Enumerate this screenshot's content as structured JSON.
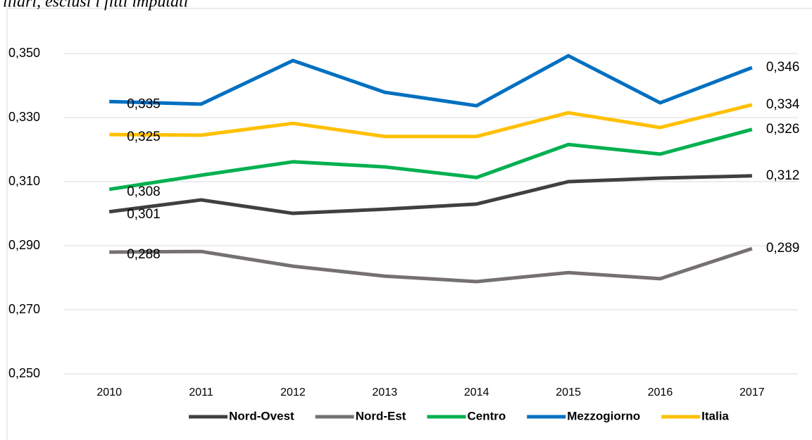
{
  "chart_data": {
    "type": "line",
    "title": "iliari, esclusi i fitti imputati",
    "categories": [
      "2010",
      "2011",
      "2012",
      "2013",
      "2014",
      "2015",
      "2016",
      "2017"
    ],
    "series": [
      {
        "name": "Nord-Ovest",
        "color": "#404040",
        "values": [
          0.3006,
          0.3043,
          0.3001,
          0.3014,
          0.303,
          0.31,
          0.3111,
          0.3118
        ],
        "value_labels": [
          "0,301",
          null,
          null,
          null,
          null,
          null,
          null,
          "0,312"
        ]
      },
      {
        "name": "Nord-Est",
        "color": "#767171",
        "values": [
          0.288,
          0.2882,
          0.2836,
          0.2805,
          0.2788,
          0.2816,
          0.2797,
          0.2891
        ],
        "value_labels": [
          "0,288",
          null,
          null,
          null,
          null,
          null,
          null,
          "0,289"
        ]
      },
      {
        "name": "Centro",
        "color": "#00b050",
        "values": [
          0.3076,
          0.312,
          0.3162,
          0.3146,
          0.3113,
          0.3216,
          0.3186,
          0.3263
        ],
        "value_labels": [
          "0,308",
          null,
          null,
          null,
          null,
          null,
          null,
          "0,326"
        ]
      },
      {
        "name": "Mezzogiorno",
        "color": "#0070c0",
        "values": [
          0.335,
          0.3342,
          0.3478,
          0.3379,
          0.3337,
          0.3493,
          0.3346,
          0.3456
        ],
        "value_labels": [
          "0,335",
          null,
          null,
          null,
          null,
          null,
          null,
          "0,346"
        ]
      },
      {
        "name": "Italia",
        "color": "#ffc000",
        "values": [
          0.3247,
          0.3245,
          0.3282,
          0.3241,
          0.3241,
          0.3315,
          0.3269,
          0.334
        ],
        "value_labels": [
          "0,325",
          null,
          null,
          null,
          null,
          null,
          null,
          "0,334"
        ]
      }
    ],
    "ylim": [
      0.25,
      0.36
    ],
    "yticks": [
      {
        "value": 0.25,
        "label": "0,250"
      },
      {
        "value": 0.27,
        "label": "0,270"
      },
      {
        "value": 0.29,
        "label": "0,290"
      },
      {
        "value": 0.31,
        "label": "0,310"
      },
      {
        "value": 0.33,
        "label": "0,330"
      },
      {
        "value": 0.35,
        "label": "0,350"
      }
    ],
    "grid": true,
    "legend": "bottom"
  }
}
